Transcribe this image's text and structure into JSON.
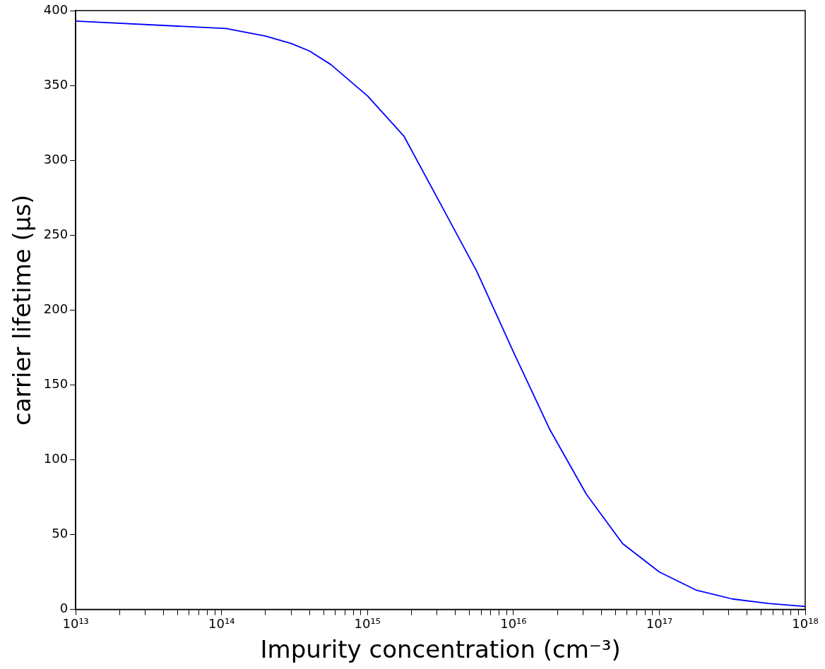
{
  "chart_data": {
    "type": "line",
    "xlabel": "Impurity concentration (cm⁻³)",
    "ylabel": "carrier lifetime (μs)",
    "x": [
      10000000000000.0,
      107000000000000.0,
      200000000000000.0,
      300000000000000.0,
      400000000000000.0,
      560000000000000.0,
      1000000000000000.0,
      1780000000000000.0,
      3160000000000000.0,
      5600000000000000.0,
      1e+16,
      1.78e+16,
      3.16e+16,
      5.6e+16,
      1e+17,
      1.78e+17,
      3.16e+17,
      5.6e+17,
      1e+18
    ],
    "series": [
      {
        "color": "#0000ff",
        "values": [
          393,
          388,
          383,
          378,
          373,
          364,
          343,
          316,
          271,
          226,
          172,
          120,
          77,
          44,
          25,
          13,
          7,
          4,
          2
        ]
      }
    ],
    "log": "x",
    "xlim": [
      10000000000000.0,
      1e+18
    ],
    "ylim": [
      0,
      400
    ],
    "xticks": [
      {
        "value": 10000000000000.0,
        "label": "10¹³"
      },
      {
        "value": 20000000000000.0,
        "label": null
      },
      {
        "value": 30000000000000.0,
        "label": null
      },
      {
        "value": 40000000000000.0,
        "label": null
      },
      {
        "value": 50000000000000.0,
        "label": null
      },
      {
        "value": 60000000000000.0,
        "label": null
      },
      {
        "value": 70000000000000.0,
        "label": null
      },
      {
        "value": 80000000000000.0,
        "label": null
      },
      {
        "value": 90000000000000.0,
        "label": null
      },
      {
        "value": 100000000000000.0,
        "label": "10¹⁴"
      },
      {
        "value": 200000000000000.0,
        "label": null
      },
      {
        "value": 300000000000000.0,
        "label": null
      },
      {
        "value": 400000000000000.0,
        "label": null
      },
      {
        "value": 500000000000000.0,
        "label": null
      },
      {
        "value": 600000000000000.0,
        "label": null
      },
      {
        "value": 700000000000000.0,
        "label": null
      },
      {
        "value": 800000000000000.0,
        "label": null
      },
      {
        "value": 900000000000000.0,
        "label": null
      },
      {
        "value": 1000000000000000.0,
        "label": "10¹⁵"
      },
      {
        "value": 2000000000000000.0,
        "label": null
      },
      {
        "value": 3000000000000000.0,
        "label": null
      },
      {
        "value": 4000000000000000.0,
        "label": null
      },
      {
        "value": 5000000000000000.0,
        "label": null
      },
      {
        "value": 6000000000000000.0,
        "label": null
      },
      {
        "value": 7000000000000000.0,
        "label": null
      },
      {
        "value": 8000000000000000.0,
        "label": null
      },
      {
        "value": 9000000000000000.0,
        "label": null
      },
      {
        "value": 1e+16,
        "label": "10¹⁶"
      },
      {
        "value": 2e+16,
        "label": null
      },
      {
        "value": 3e+16,
        "label": null
      },
      {
        "value": 4e+16,
        "label": null
      },
      {
        "value": 5e+16,
        "label": null
      },
      {
        "value": 6e+16,
        "label": null
      },
      {
        "value": 7e+16,
        "label": null
      },
      {
        "value": 8e+16,
        "label": null
      },
      {
        "value": 9e+16,
        "label": null
      },
      {
        "value": 1e+17,
        "label": "10¹⁷"
      },
      {
        "value": 2e+17,
        "label": null
      },
      {
        "value": 3e+17,
        "label": null
      },
      {
        "value": 4e+17,
        "label": null
      },
      {
        "value": 5e+17,
        "label": null
      },
      {
        "value": 6e+17,
        "label": null
      },
      {
        "value": 7e+17,
        "label": null
      },
      {
        "value": 8e+17,
        "label": null
      },
      {
        "value": 9e+17,
        "label": null
      },
      {
        "value": 1e+18,
        "label": "10¹⁸"
      }
    ],
    "yticks": [
      0,
      50,
      100,
      150,
      200,
      250,
      300,
      350,
      400
    ],
    "grid": false,
    "legend": false,
    "marker": "none",
    "line_style": "solid"
  }
}
